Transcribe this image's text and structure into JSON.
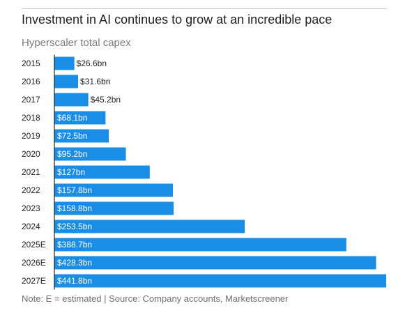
{
  "header": {
    "title": "Investment in AI continues to grow at an incredible pace",
    "subtitle": "Hyperscaler total capex"
  },
  "footer": {
    "note": "Note: E = estimated | Source: Company accounts, Marketscreener"
  },
  "colors": {
    "bar": "#1a8ee6",
    "axis": "#222222",
    "label_inside": "#ffffff",
    "label_outside": "#222222"
  },
  "chart_data": {
    "type": "bar",
    "orientation": "horizontal",
    "title": "Investment in AI continues to grow at an incredible pace",
    "subtitle": "Hyperscaler total capex",
    "xlabel": "",
    "ylabel": "",
    "unit": "$bn",
    "grid": false,
    "legend": "none",
    "xlim": [
      0,
      441.8
    ],
    "categories": [
      "2015",
      "2016",
      "2017",
      "2018",
      "2019",
      "2020",
      "2021",
      "2022",
      "2023",
      "2024",
      "2025E",
      "2026E",
      "2027E"
    ],
    "values": [
      26.6,
      31.6,
      45.2,
      68.1,
      72.5,
      95.2,
      127,
      157.8,
      158.8,
      253.5,
      388.7,
      428.3,
      441.8
    ],
    "data_labels": [
      "$26.6bn",
      "$31.6bn",
      "$45.2bn",
      "$68.1bn",
      "$72.5bn",
      "$95.2bn",
      "$127bn",
      "$157.8bn",
      "$158.8bn",
      "$253.5bn",
      "$388.7bn",
      "$428.3bn",
      "$441.8bn"
    ]
  }
}
